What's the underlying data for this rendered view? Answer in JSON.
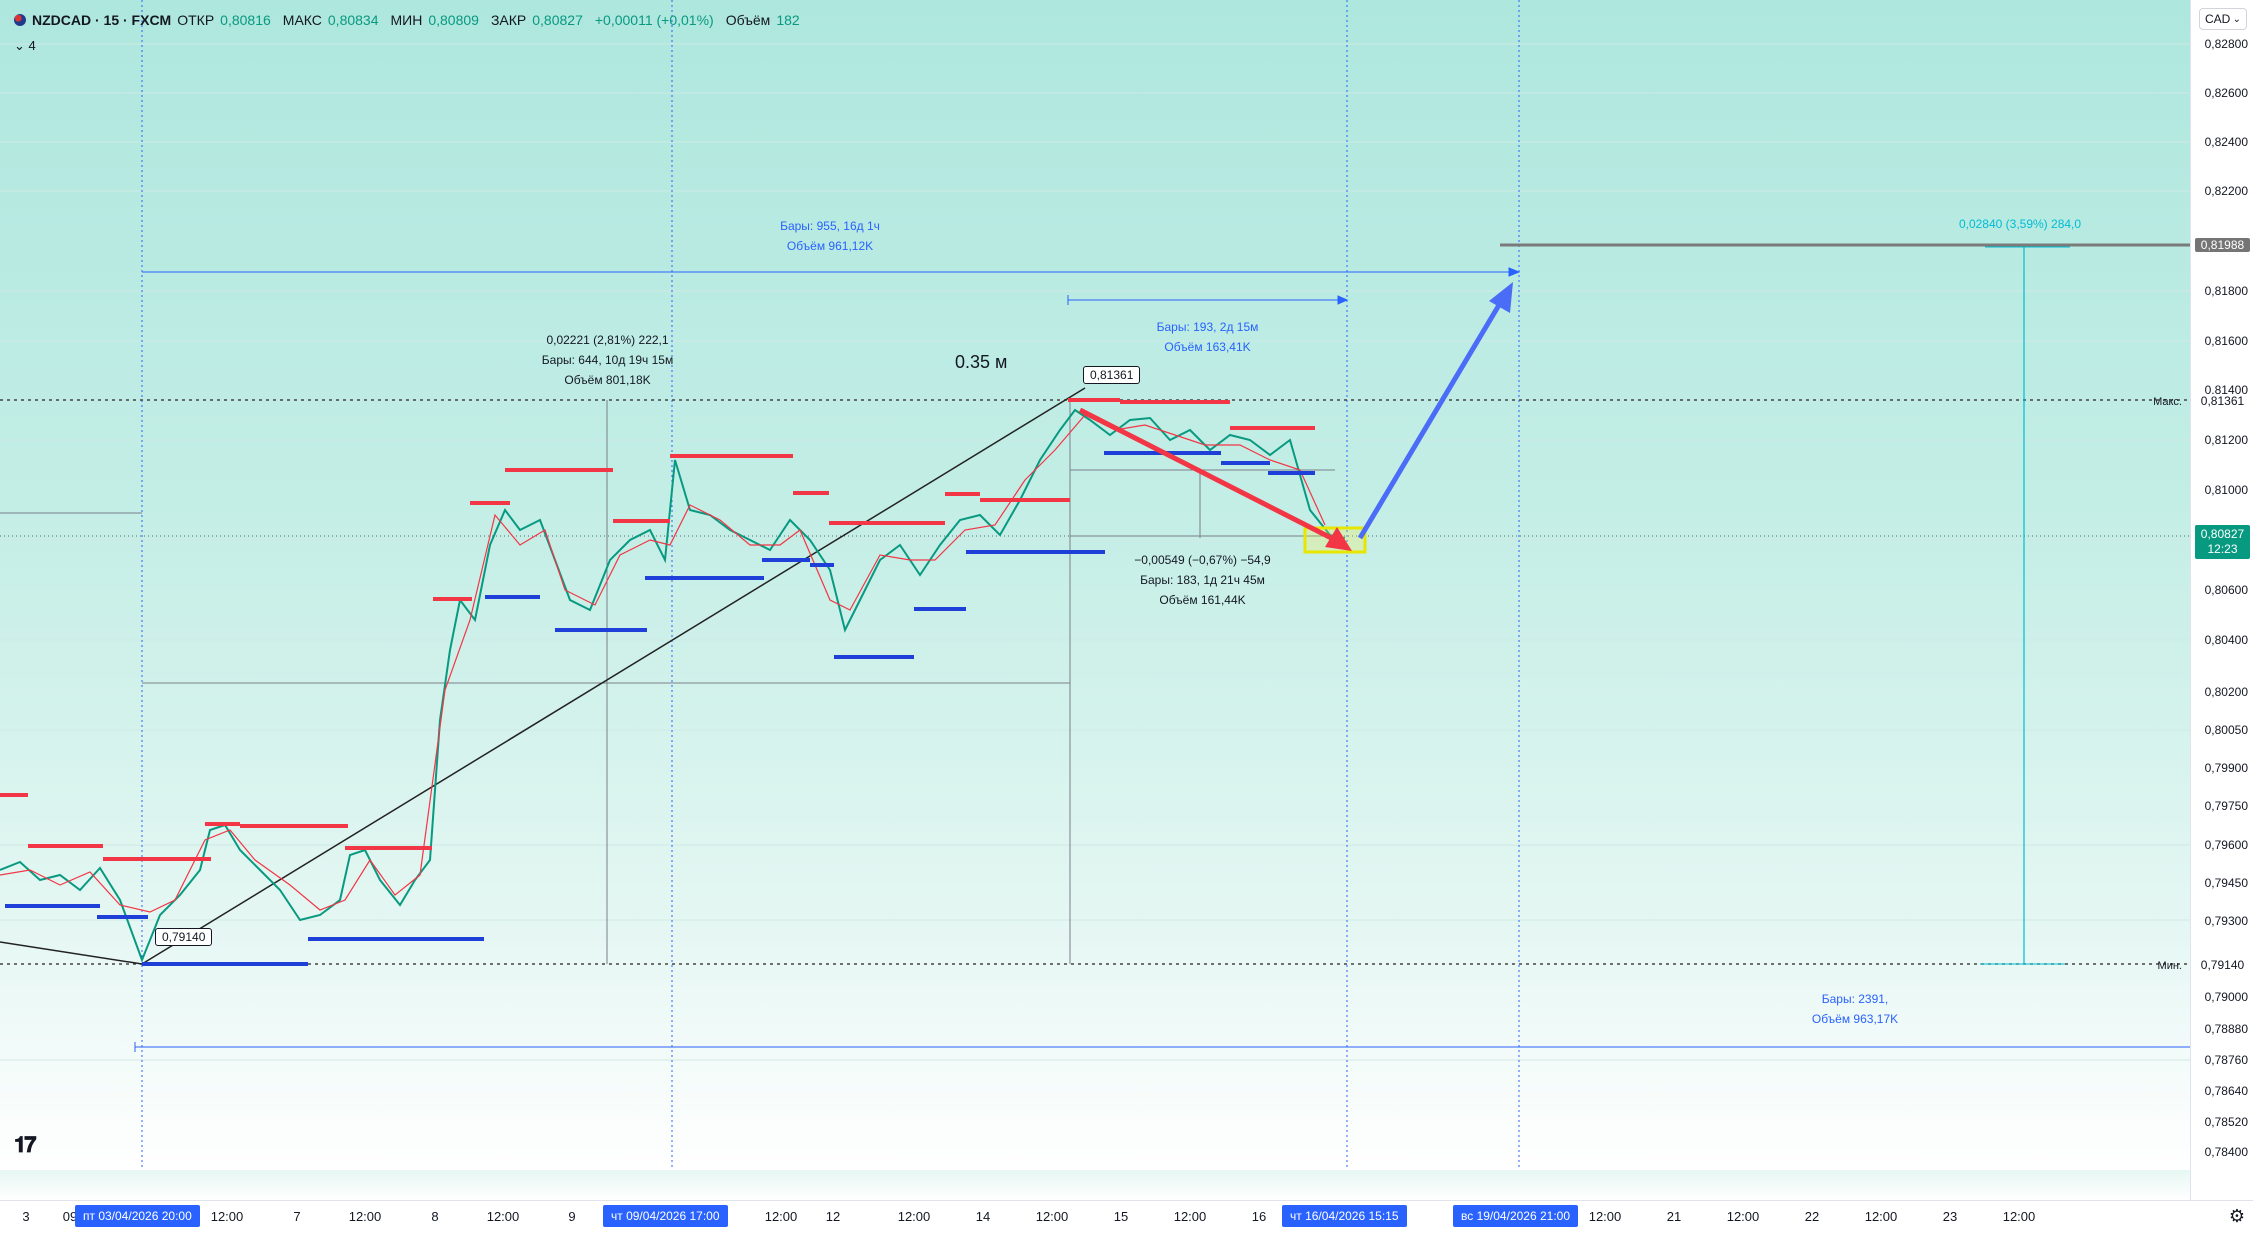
{
  "header": {
    "symbol": "NZDCAD · 15 · FXCM",
    "open_label": "ОТКР",
    "open": "0,80816",
    "high_label": "МАКС",
    "high": "0,80834",
    "low_label": "МИН",
    "low": "0,80809",
    "close_label": "ЗАКР",
    "close": "0,80827",
    "change": "+0,00011 (+0,01%)",
    "volume_label": "Объём",
    "volume": "182",
    "indicator_toggle": "⌄ 4"
  },
  "price_scale": {
    "currency": "CAD",
    "ticks": [
      "0,82800",
      "0,82600",
      "0,82400",
      "0,82200",
      "0,81800",
      "0,81600",
      "0,81400",
      "0,81200",
      "0,81000",
      "0,80600",
      "0,80400",
      "0,80200",
      "0,80050",
      "0,79900",
      "0,79750",
      "0,79600",
      "0,79450",
      "0,79300",
      "0,79000",
      "0,78880",
      "0,78760",
      "0,78640",
      "0,78520",
      "0,78400"
    ],
    "target_price": "0,81988",
    "max_label": "Макс.",
    "max_price": "0,81361",
    "current_price": "0,80827",
    "countdown": "12:23",
    "min_label": "Мин.",
    "min_price": "0,79140"
  },
  "time_axis": {
    "labels": [
      "3",
      "09",
      "12:00",
      "7",
      "12:00",
      "8",
      "12:00",
      "9",
      "12:00",
      "12",
      "12:00",
      "14",
      "12:00",
      "15",
      "12:00",
      "16",
      "12:00",
      "21",
      "12:00",
      "22",
      "12:00",
      "23",
      "12:00"
    ],
    "highlight_1": "пт 03/04/2026   20:00",
    "highlight_2": "чт 09/04/2026   17:00",
    "highlight_3": "чт 16/04/2026   15:15",
    "highlight_4": "вс 19/04/2026   21:00"
  },
  "annotations": {
    "range_main_bars": "Бары: 955, 16д 1ч",
    "range_main_volume": "Объём 961,12K",
    "range_mid_change": "0,02221 (2,81%) 222,1",
    "range_mid_bars": "Бары: 644, 10д 19ч 15м",
    "range_mid_volume": "Объём 801,18K",
    "title_text": "0.35 м",
    "range_right_bars": "Бары: 193, 2д 15м",
    "range_right_volume": "Объём 163,41K",
    "range_down_change": "−0,00549 (−0,67%) −54,9",
    "range_down_bars": "Бары: 183, 1д 21ч 45м",
    "range_down_volume": "Объём 161,44K",
    "range_up_change": "0,02840 (3,59%) 284,0",
    "range_bottom_bars": "Бары: 2391,",
    "range_bottom_volume": "Объём 963,17K",
    "low_marker": "0,79140",
    "high_marker": "0,81361"
  },
  "colors": {
    "up": "#089981",
    "down": "#f23645",
    "accent": "#2962ff",
    "resistance": "#f23645",
    "support": "#1e3fd8"
  }
}
